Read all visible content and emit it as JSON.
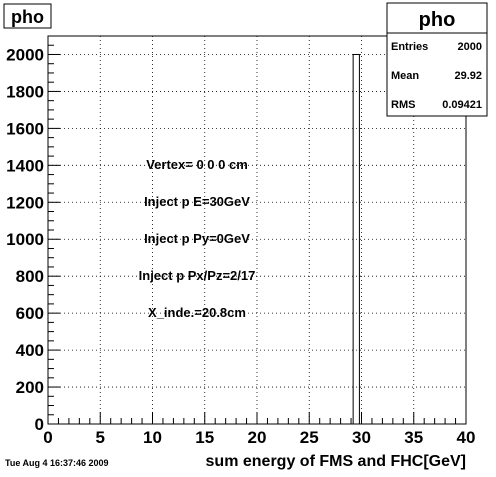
{
  "canvas_title": "pho",
  "stats": {
    "title": "pho",
    "rows": [
      {
        "label": "Entries",
        "value": "2000"
      },
      {
        "label": "Mean",
        "value": "29.92"
      },
      {
        "label": "RMS",
        "value": "0.09421"
      }
    ]
  },
  "annotations": [
    "Vertex= 0 0 0 cm",
    "Inject p E=30GeV",
    "Inject p Py=0GeV",
    "Inject p Px/Pz=2/17",
    "X_inde.=20.8cm"
  ],
  "timestamp": "Tue Aug  4 16:37:46 2009",
  "chart_data": {
    "type": "bar",
    "title": "pho",
    "xlabel": "sum energy of FMS and FHC[GeV]",
    "ylabel": "",
    "xlim": [
      0,
      40
    ],
    "ylim": [
      0,
      2100
    ],
    "xticks": [
      0,
      5,
      10,
      15,
      20,
      25,
      30,
      35,
      40
    ],
    "yticks": [
      0,
      200,
      400,
      600,
      800,
      1000,
      1200,
      1400,
      1600,
      1800,
      2000
    ],
    "grid": true,
    "bins": [
      {
        "x0": 29.2,
        "x1": 29.8,
        "value": 2000
      }
    ],
    "colors": {
      "line": "#000000",
      "grid": "#000000"
    }
  }
}
